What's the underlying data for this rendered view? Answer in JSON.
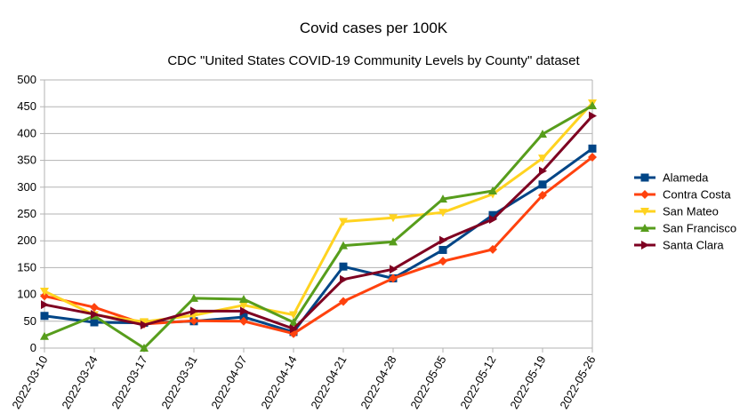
{
  "chart_data": {
    "type": "line",
    "title": "Covid cases per 100K",
    "subtitle": "CDC \"United States COVID-19 Community Levels by County\" dataset",
    "categories": [
      "2022-03-10",
      "2022-03-24",
      "2022-03-17",
      "2022-03-31",
      "2022-04-07",
      "2022-04-14",
      "2022-04-21",
      "2022-04-28",
      "2022-05-05",
      "2022-05-12",
      "2022-05-19",
      "2022-05-26"
    ],
    "ylim": [
      0,
      500
    ],
    "yticks": [
      "0",
      "50",
      "100",
      "150",
      "200",
      "250",
      "300",
      "350",
      "400",
      "450",
      "500"
    ],
    "grid": true,
    "legend_position": "right",
    "series": [
      {
        "name": "Alameda",
        "color": "#004586",
        "marker": "square",
        "values": [
          60,
          48,
          47,
          50,
          58,
          30,
          152,
          130,
          183,
          248,
          305,
          372
        ]
      },
      {
        "name": "Contra Costa",
        "color": "#ff420e",
        "marker": "diamond",
        "values": [
          97,
          76,
          45,
          51,
          50,
          27,
          87,
          130,
          162,
          184,
          285,
          356
        ]
      },
      {
        "name": "San Mateo",
        "color": "#ffd320",
        "marker": "triangle-down",
        "values": [
          106,
          62,
          49,
          61,
          80,
          62,
          236,
          243,
          253,
          287,
          354,
          457
        ]
      },
      {
        "name": "San Francisco",
        "color": "#579d1c",
        "marker": "triangle-up",
        "values": [
          22,
          60,
          0,
          93,
          91,
          48,
          191,
          198,
          278,
          293,
          399,
          452
        ]
      },
      {
        "name": "Santa Clara",
        "color": "#7e0021",
        "marker": "triangle-right",
        "values": [
          81,
          63,
          43,
          69,
          69,
          36,
          128,
          147,
          201,
          240,
          330,
          433
        ]
      }
    ]
  }
}
